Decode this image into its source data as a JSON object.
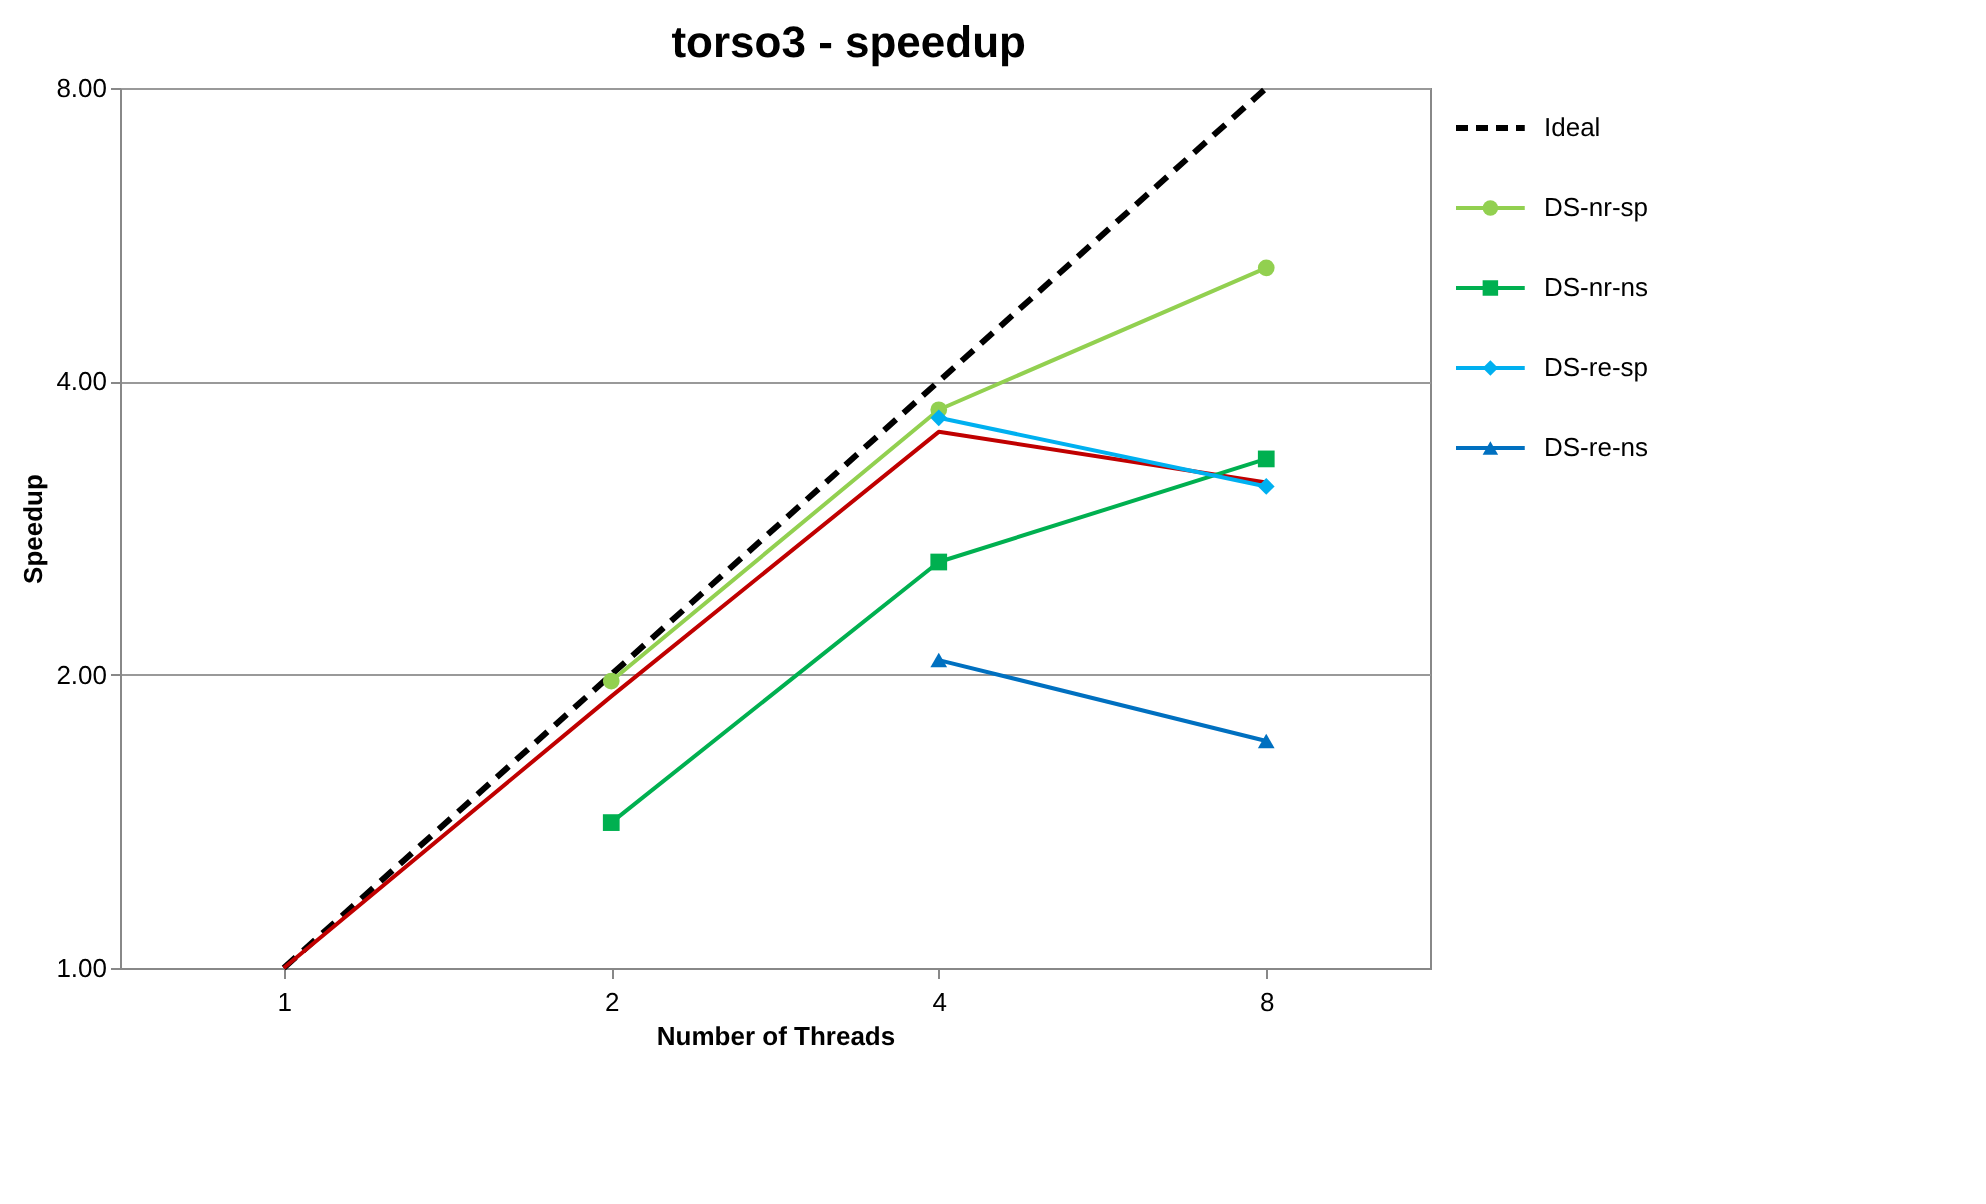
{
  "chart_data": {
    "type": "line",
    "title": "torso3 - speedup",
    "xlabel": "Number of Threads",
    "ylabel": "Speedup",
    "categories": [
      "1",
      "2",
      "4",
      "8"
    ],
    "series": [
      {
        "name": "Ideal",
        "color": "#000000",
        "line_style": "dashed",
        "marker": "none",
        "values": [
          1,
          2,
          4,
          8
        ]
      },
      {
        "color": "#c00000",
        "line_style": "solid",
        "marker": "none",
        "values": [
          1,
          1.9,
          3.55,
          3.15
        ]
      },
      {
        "name": "DS-nr-sp",
        "color": "#92d050",
        "line_style": "solid",
        "marker": "circle",
        "values": [
          null,
          1.97,
          3.74,
          5.23
        ]
      },
      {
        "name": "DS-nr-ns",
        "color": "#00b050",
        "line_style": "solid",
        "marker": "square",
        "values": [
          null,
          1.41,
          2.61,
          3.33
        ]
      },
      {
        "name": "DS-re-sp",
        "color": "#00b0f0",
        "line_style": "solid",
        "marker": "diamond",
        "values": [
          null,
          null,
          3.67,
          3.12
        ]
      },
      {
        "name": "DS-re-ns",
        "color": "#0070c0",
        "line_style": "solid",
        "marker": "triangle",
        "values": [
          null,
          null,
          2.07,
          1.71
        ]
      }
    ],
    "log": "y",
    "ylim": [
      1,
      8
    ],
    "yticks": [
      {
        "value": 1,
        "label": "1.00"
      },
      {
        "value": 2,
        "label": "2.00"
      },
      {
        "value": 4,
        "label": "4.00"
      },
      {
        "value": 8,
        "label": "8.00"
      }
    ],
    "grid": "y",
    "legend": "right"
  }
}
